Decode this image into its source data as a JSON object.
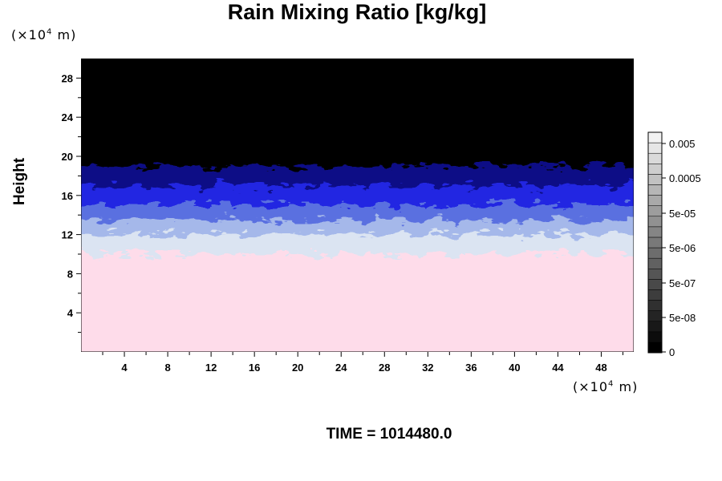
{
  "title": "Rain Mixing Ratio [kg/kg]",
  "units": {
    "y_prefix": "(×10",
    "y_exp": "4",
    "y_suffix": " m)",
    "x_prefix": "(×10",
    "x_exp": "4",
    "x_suffix": " m)"
  },
  "time_label": "TIME = 1014480.0",
  "chart_data": {
    "type": "heatmap",
    "title": "Rain Mixing Ratio [kg/kg]",
    "xlabel": "",
    "ylabel": "Height",
    "x_unit": "(×10^4 m)",
    "y_unit": "(×10^4 m)",
    "xlim": [
      0,
      51
    ],
    "ylim": [
      0,
      30
    ],
    "x_ticks": [
      4,
      8,
      12,
      16,
      20,
      24,
      28,
      32,
      36,
      40,
      44,
      48
    ],
    "y_ticks": [
      4,
      8,
      12,
      16,
      20,
      24,
      28
    ],
    "field_profile": [
      {
        "height_min": 0,
        "height_max": 10,
        "color": "#fedcea"
      },
      {
        "height_min": 10,
        "height_max": 12,
        "color": "#dbe4f2"
      },
      {
        "height_min": 12,
        "height_max": 13.5,
        "color": "#a5b8ea"
      },
      {
        "height_min": 13.5,
        "height_max": 15,
        "color": "#5a70e0"
      },
      {
        "height_min": 15,
        "height_max": 17,
        "color": "#2028e2"
      },
      {
        "height_min": 17,
        "height_max": 19,
        "color": "#0c0c86"
      },
      {
        "height_min": 19,
        "height_max": 30,
        "color": "#000000"
      }
    ],
    "colorbar": {
      "labels": [
        "0",
        "5e-08",
        "5e-07",
        "5e-06",
        "5e-05",
        "0.0005",
        "0.005"
      ],
      "levels": 21,
      "color_low": "#000000",
      "color_high": "#f2f2f2"
    }
  }
}
